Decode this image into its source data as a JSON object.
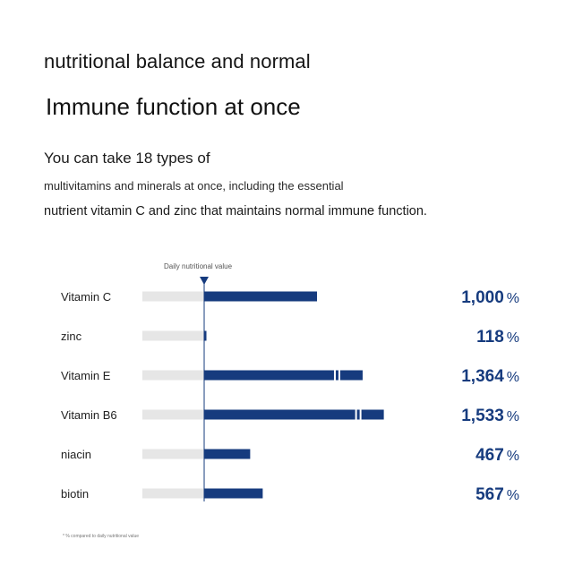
{
  "heading": {
    "line1": "nutritional balance and normal",
    "line2": "Immune function at once"
  },
  "description": {
    "line1": "You can take 18 types of",
    "line2": "multivitamins and minerals at once, including the essential",
    "line3": "nutrient vitamin C and zinc that maintains normal immune function."
  },
  "footnote": "* % compared to daily nutritional value",
  "colors": {
    "bar": "#163b7e",
    "track": "#e6e6e6",
    "reference_line": "#163b7e",
    "value_text": "#163b7e"
  },
  "chart_data": {
    "type": "bar",
    "orientation": "horizontal",
    "reference": {
      "label": "Daily nutritional value",
      "value": 100
    },
    "categories": [
      "Vitamin C",
      "zinc",
      "Vitamin E",
      "Vitamin B6",
      "niacin",
      "biotin"
    ],
    "values": [
      1000,
      118,
      1364,
      1533,
      467,
      567
    ],
    "value_labels": [
      "1,000",
      "118",
      "1,364",
      "1,533",
      "467",
      "567"
    ],
    "unit": "%",
    "broken_axis": [
      false,
      false,
      true,
      true,
      false,
      false
    ],
    "xlim": [
      0,
      1600
    ],
    "grid": false,
    "legend": "none"
  }
}
